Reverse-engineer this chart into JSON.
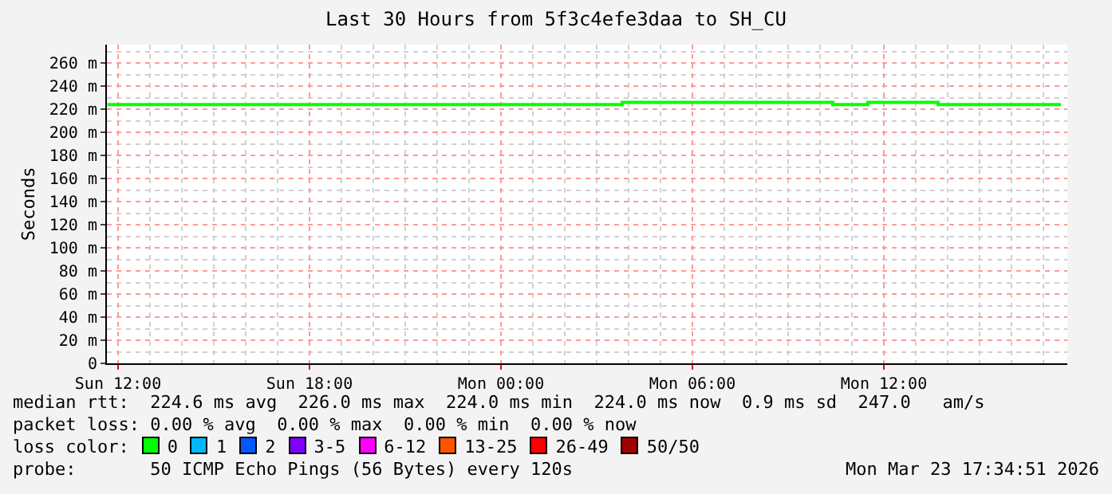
{
  "chart_data": {
    "type": "step",
    "title": "Last 30 Hours from 5f3c4efe3daa to SH_CU",
    "ylabel": "Seconds",
    "x": [
      "2026-03-22T11:40",
      "2026-03-23T03:48",
      "2026-03-23T10:24",
      "2026-03-23T11:30",
      "2026-03-23T13:42",
      "2026-03-23T17:33"
    ],
    "series": [
      {
        "color": "#00ff00",
        "values": [
          224,
          226,
          224,
          226,
          224,
          224
        ]
      }
    ],
    "xlim": [
      "2026-03-22T11:39",
      "2026-03-23T17:45"
    ],
    "xticks": [
      {
        "value": "2026-03-22T12:00",
        "label": "Sun 12:00"
      },
      {
        "value": "2026-03-22T18:00",
        "label": "Sun 18:00"
      },
      {
        "value": "2026-03-23T00:00",
        "label": "Mon 00:00"
      },
      {
        "value": "2026-03-23T06:00",
        "label": "Mon 06:00"
      },
      {
        "value": "2026-03-23T12:00",
        "label": "Mon 12:00"
      }
    ],
    "ylim": [
      0,
      276
    ],
    "yticks": [
      0,
      {
        "value": 20,
        "label": "20 m"
      },
      {
        "value": 40,
        "label": "40 m"
      },
      {
        "value": 60,
        "label": "60 m"
      },
      {
        "value": 80,
        "label": "80 m"
      },
      {
        "value": 100,
        "label": "100 m"
      },
      {
        "value": 120,
        "label": "120 m"
      },
      {
        "value": 140,
        "label": "140 m"
      },
      {
        "value": 160,
        "label": "160 m"
      },
      {
        "value": 180,
        "label": "180 m"
      },
      {
        "value": 200,
        "label": "200 m"
      },
      {
        "value": 220,
        "label": "220 m"
      },
      {
        "value": 240,
        "label": "240 m"
      },
      {
        "value": 260,
        "label": "260 m"
      }
    ],
    "grid": true,
    "annotations": [
      "median rtt:  224.6 ms avg  226.0 ms max  224.0 ms min  224.0 ms now  0.9 ms sd  247.0   am/s",
      "packet loss: 0.00 % avg  0.00 % max  0.00 % min  0.00 % now",
      "loss color:",
      "0",
      "1",
      "2",
      "3-5",
      "6-12",
      "13-25",
      "26-49",
      "50/50",
      "probe:       50 ICMP Echo Pings (56 Bytes) every 120s",
      "Mon Mar 23 17:34:51 2026"
    ]
  }
}
